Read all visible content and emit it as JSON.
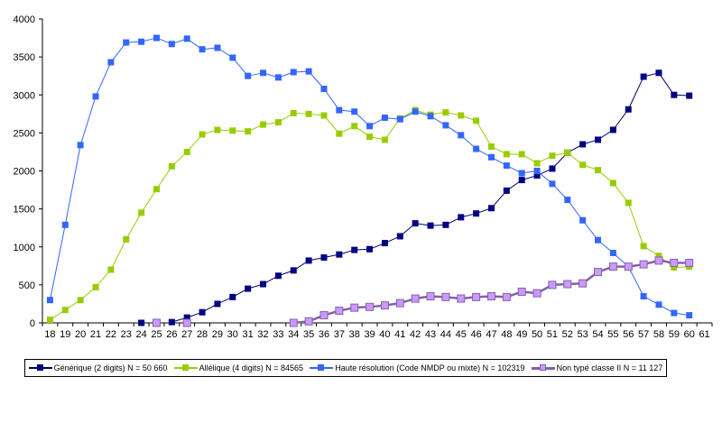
{
  "chart_data": {
    "type": "line",
    "title": "",
    "xlabel": "",
    "ylabel": "",
    "ylim": [
      0,
      4000
    ],
    "yticks": [
      0,
      500,
      1000,
      1500,
      2000,
      2500,
      3000,
      3500,
      4000
    ],
    "categories": [
      "18",
      "19",
      "20",
      "21",
      "22",
      "23",
      "24",
      "25",
      "26",
      "27",
      "28",
      "29",
      "30",
      "31",
      "32",
      "33",
      "34",
      "35",
      "36",
      "37",
      "38",
      "39",
      "40",
      "41",
      "42",
      "43",
      "44",
      "45",
      "46",
      "47",
      "48",
      "49",
      "50",
      "51",
      "52",
      "53",
      "54",
      "55",
      "56",
      "57",
      "58",
      "59",
      "60",
      "61"
    ],
    "grid": false,
    "legend": "bottom",
    "series": [
      {
        "name": "Générique (2 digits) N = 50 660",
        "color": "#000066",
        "marker_fill": "#000080",
        "values": [
          null,
          null,
          null,
          null,
          null,
          null,
          0,
          null,
          10,
          70,
          140,
          250,
          340,
          450,
          510,
          620,
          690,
          820,
          860,
          900,
          960,
          970,
          1050,
          1140,
          1310,
          1280,
          1290,
          1390,
          1440,
          1510,
          1740,
          1880,
          1940,
          2030,
          2240,
          2350,
          2410,
          2540,
          2810,
          3240,
          3290,
          3000,
          2990,
          null
        ]
      },
      {
        "name": "Allélique (4 digits) N = 84565",
        "color": "#99cc00",
        "marker_fill": "#99cc00",
        "values": [
          40,
          170,
          300,
          470,
          700,
          1100,
          1450,
          1760,
          2060,
          2250,
          2480,
          2540,
          2530,
          2520,
          2610,
          2640,
          2760,
          2750,
          2730,
          2490,
          2590,
          2450,
          2410,
          2690,
          2800,
          2740,
          2770,
          2730,
          2660,
          2320,
          2220,
          2220,
          2100,
          2200,
          2240,
          2080,
          2010,
          1840,
          1580,
          1010,
          880,
          730,
          740,
          null
        ]
      },
      {
        "name": "Haute résolution (Code NMDP ou mixte) N = 102319",
        "color": "#3366ff",
        "marker_fill": "#3366ff",
        "values": [
          300,
          1290,
          2340,
          2980,
          3430,
          3690,
          3700,
          3750,
          3670,
          3740,
          3600,
          3620,
          3490,
          3250,
          3290,
          3230,
          3300,
          3310,
          3080,
          2800,
          2780,
          2590,
          2700,
          2680,
          2780,
          2720,
          2600,
          2470,
          2290,
          2180,
          2070,
          1970,
          2000,
          1830,
          1620,
          1350,
          1090,
          920,
          740,
          350,
          240,
          130,
          100,
          null
        ]
      },
      {
        "name": "Non typé classe II N = 11 127",
        "color": "#8064a2",
        "marker_fill": "#cc99ff",
        "values": [
          null,
          null,
          null,
          null,
          null,
          null,
          null,
          0,
          null,
          0,
          null,
          null,
          null,
          null,
          null,
          null,
          0,
          20,
          100,
          160,
          200,
          210,
          230,
          260,
          320,
          350,
          340,
          320,
          340,
          350,
          340,
          410,
          390,
          500,
          510,
          520,
          670,
          740,
          740,
          770,
          820,
          790,
          790,
          null
        ]
      }
    ]
  }
}
